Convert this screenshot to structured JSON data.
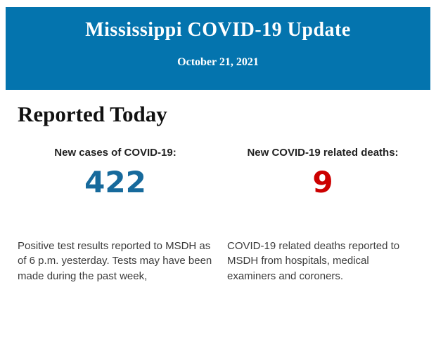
{
  "header": {
    "title": "Mississippi COVID-19 Update",
    "date": "October 21, 2021",
    "background_color": "#0474ae",
    "text_color": "#ffffff"
  },
  "main": {
    "heading": "Reported Today",
    "stats": [
      {
        "label": "New cases of COVID-19:",
        "value": "422",
        "value_color": "#176a9c",
        "description": "Positive test results reported to MSDH as of 6 p.m. yesterday. Tests may have been made during the past week,"
      },
      {
        "label": "New COVID-19 related deaths:",
        "value": "9",
        "value_color": "#cc0000",
        "description": "COVID-19 related deaths reported to MSDH from hospitals, medical examiners and coroners."
      }
    ]
  }
}
